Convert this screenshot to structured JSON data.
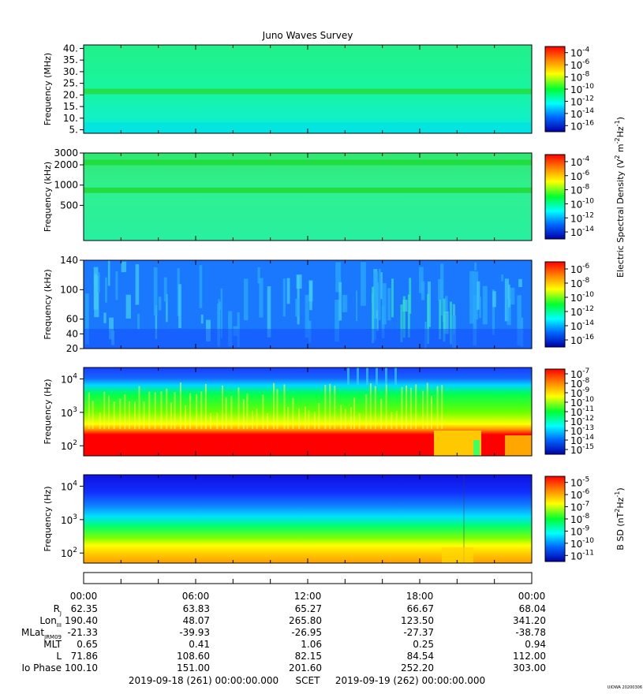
{
  "title": "Juno Waves Survey",
  "stamp": "UIOWA 20200306",
  "chart_data": [
    {
      "type": "heatmap",
      "ylabel": "Frequency (MHz)",
      "yticks": [
        "5.",
        "10.",
        "15.",
        "20.",
        "25.",
        "30.",
        "35.",
        "40."
      ],
      "ytick_values": [
        5,
        10,
        15,
        20,
        25,
        30,
        35,
        40
      ],
      "ylim": [
        3.5,
        41.5
      ],
      "yscale": "linear",
      "colorbar": {
        "exponents": [
          "-4",
          "-6",
          "-8",
          "-10",
          "-12",
          "-14",
          "-16"
        ]
      }
    },
    {
      "type": "heatmap",
      "ylabel": "Frequency (kHz)",
      "yticks": [
        "3000",
        "2000",
        "1000",
        "500"
      ],
      "ytick_values": [
        3000,
        2000,
        1000,
        500
      ],
      "ylim": [
        150,
        3000
      ],
      "yscale": "log",
      "colorbar": {
        "exponents": [
          "-4",
          "-6",
          "-8",
          "-10",
          "-12",
          "-14"
        ]
      }
    },
    {
      "type": "heatmap",
      "ylabel": "Frequency (kHz)",
      "yticks": [
        "140",
        "100",
        "60",
        "40",
        "20"
      ],
      "ytick_values": [
        140,
        100,
        60,
        40,
        20
      ],
      "ylim": [
        20,
        140
      ],
      "yscale": "linear",
      "colorbar": {
        "exponents": [
          "-6",
          "-8",
          "-10",
          "-12",
          "-14",
          "-16"
        ]
      }
    },
    {
      "type": "heatmap",
      "ylabel": "Frequency (Hz)",
      "yticks_exp": [
        "4",
        "3",
        "2"
      ],
      "ytick_values": [
        10000,
        1000,
        100
      ],
      "ylim": [
        50,
        22000
      ],
      "yscale": "log",
      "colorbar": {
        "exponents": [
          "-7",
          "-8",
          "-9",
          "-10",
          "-11",
          "-12",
          "-13",
          "-14",
          "-15"
        ]
      }
    },
    {
      "type": "heatmap",
      "ylabel": "Frequency (Hz)",
      "yticks_exp": [
        "4",
        "3",
        "2"
      ],
      "ytick_values": [
        10000,
        1000,
        100
      ],
      "ylim": [
        50,
        22000
      ],
      "yscale": "log",
      "colorbar": {
        "exponents": [
          "-5",
          "-6",
          "-7",
          "-8",
          "-9",
          "-10",
          "-11"
        ]
      }
    }
  ],
  "colorbar_labels": {
    "electric": [
      "Electric Spectral Density (V",
      "2",
      " m",
      "-2",
      "Hz",
      "-1",
      ")"
    ],
    "magnetic": [
      "B SD (nT",
      "2",
      "Hz",
      "-1",
      ")"
    ]
  },
  "ephemeris": {
    "times": [
      "00:00",
      "06:00",
      "12:00",
      "18:00",
      "00:00"
    ],
    "rows": [
      {
        "label": "R",
        "sub": "J",
        "values": [
          "62.35",
          "63.83",
          "65.27",
          "66.67",
          "68.04"
        ]
      },
      {
        "label": "Lon",
        "sub": "III",
        "values": [
          "190.40",
          "48.07",
          "265.80",
          "123.50",
          "341.20"
        ]
      },
      {
        "label": "MLat",
        "sub": "JRM09",
        "values": [
          "-21.33",
          "-39.93",
          "-26.95",
          "-27.37",
          "-38.78"
        ]
      },
      {
        "label": "MLT",
        "sub": "",
        "values": [
          "0.65",
          "0.41",
          "1.06",
          "0.25",
          "0.94"
        ]
      },
      {
        "label": "L",
        "sub": "",
        "values": [
          "71.86",
          "108.60",
          "82.15",
          "84.54",
          "112.00"
        ]
      },
      {
        "label": "Io Phase",
        "sub": "",
        "values": [
          "100.10",
          "151.00",
          "201.60",
          "252.20",
          "303.00"
        ]
      }
    ]
  },
  "scet": {
    "start": "2019-09-18 (261) 00:00:00.000",
    "label": "SCET",
    "end": "2019-09-19 (262) 00:00:00.000"
  }
}
